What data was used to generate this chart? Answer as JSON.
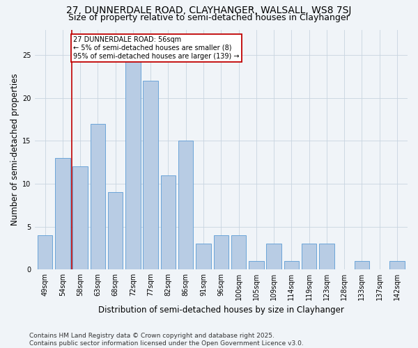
{
  "title": "27, DUNNERDALE ROAD, CLAYHANGER, WALSALL, WS8 7SJ",
  "subtitle": "Size of property relative to semi-detached houses in Clayhanger",
  "xlabel": "Distribution of semi-detached houses by size in Clayhanger",
  "ylabel": "Number of semi-detached properties",
  "categories": [
    "49sqm",
    "54sqm",
    "58sqm",
    "63sqm",
    "68sqm",
    "72sqm",
    "77sqm",
    "82sqm",
    "86sqm",
    "91sqm",
    "96sqm",
    "100sqm",
    "105sqm",
    "109sqm",
    "114sqm",
    "119sqm",
    "123sqm",
    "128sqm",
    "133sqm",
    "137sqm",
    "142sqm"
  ],
  "values": [
    4,
    13,
    12,
    17,
    9,
    25,
    22,
    11,
    15,
    3,
    4,
    4,
    1,
    3,
    1,
    3,
    3,
    0,
    1,
    0,
    1
  ],
  "bar_color": "#b8cce4",
  "bar_edge_color": "#5b9bd5",
  "ref_line_x": 1.5,
  "ref_line_label": "27 DUNNERDALE ROAD: 56sqm",
  "ref_line_smaller": "← 5% of semi-detached houses are smaller (8)",
  "ref_line_larger": "95% of semi-detached houses are larger (139) →",
  "annotation_box_color": "#c00000",
  "ylim": [
    0,
    28
  ],
  "yticks": [
    0,
    5,
    10,
    15,
    20,
    25
  ],
  "background_color": "#f0f4f8",
  "grid_color": "#c8d4e0",
  "footer": "Contains HM Land Registry data © Crown copyright and database right 2025.\nContains public sector information licensed under the Open Government Licence v3.0.",
  "title_fontsize": 10,
  "subtitle_fontsize": 9,
  "xlabel_fontsize": 8.5,
  "ylabel_fontsize": 8.5,
  "tick_fontsize": 7,
  "footer_fontsize": 6.5,
  "annotation_fontsize": 7
}
